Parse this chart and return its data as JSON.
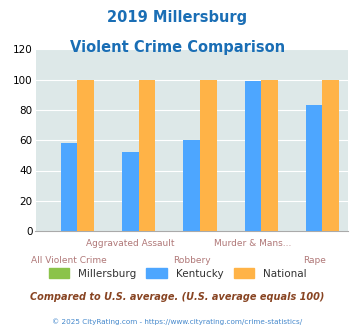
{
  "title_line1": "2019 Millersburg",
  "title_line2": "Violent Crime Comparison",
  "categories": [
    "All Violent Crime",
    "Aggravated Assault",
    "Robbery",
    "Murder & Mans...",
    "Rape"
  ],
  "millersburg": [
    0,
    0,
    0,
    0,
    0
  ],
  "kentucky": [
    58,
    52,
    60,
    99,
    83
  ],
  "national": [
    100,
    100,
    100,
    100,
    100
  ],
  "colors": {
    "millersburg": "#8bc34a",
    "kentucky": "#4da6ff",
    "national": "#ffb347"
  },
  "ylim": [
    0,
    120
  ],
  "yticks": [
    0,
    20,
    40,
    60,
    80,
    100,
    120
  ],
  "background_color": "#dde8e8",
  "title_color": "#1a6eb5",
  "xlabel_color": "#b07878",
  "legend_label_color": "#333333",
  "footer_text": "Compared to U.S. average. (U.S. average equals 100)",
  "copyright_text": "© 2025 CityRating.com - https://www.cityrating.com/crime-statistics/",
  "footer_color": "#884422",
  "copyright_color": "#4488cc"
}
